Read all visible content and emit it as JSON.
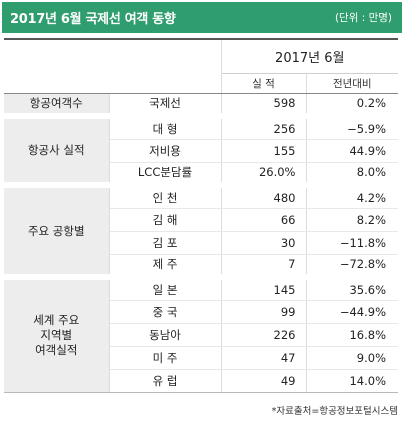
{
  "title": "2017년 6월 국제선 여객 동향",
  "unit": "(단위 : 만명)",
  "header": {
    "period": "2017년 6월",
    "col_result": "실 적",
    "col_change": "전년대비"
  },
  "sections": [
    {
      "group": "항공여객수",
      "rows": [
        {
          "label": "국제선",
          "value": "598",
          "change": "0.2%"
        }
      ]
    },
    {
      "group": "항공사 실적",
      "rows": [
        {
          "label": "대 형",
          "value": "256",
          "change": "−5.9%"
        },
        {
          "label": "저비용",
          "value": "155",
          "change": "44.9%"
        },
        {
          "label": "LCC분담률",
          "value": "26.0%",
          "change": "8.0%"
        }
      ]
    },
    {
      "group": "주요 공항별",
      "rows": [
        {
          "label": "인 천",
          "value": "480",
          "change": "4.2%"
        },
        {
          "label": "김 해",
          "value": "66",
          "change": "8.2%"
        },
        {
          "label": "김 포",
          "value": "30",
          "change": "−11.8%"
        },
        {
          "label": "제 주",
          "value": "7",
          "change": "−72.8%"
        }
      ]
    },
    {
      "group": "세계 주요\n지역별\n여객실적",
      "rows": [
        {
          "label": "일 본",
          "value": "145",
          "change": "35.6%"
        },
        {
          "label": "중 국",
          "value": "99",
          "change": "−44.9%"
        },
        {
          "label": "동남아",
          "value": "226",
          "change": "16.8%"
        },
        {
          "label": "미 주",
          "value": "47",
          "change": "9.0%"
        },
        {
          "label": "유 럽",
          "value": "49",
          "change": "14.0%"
        }
      ]
    }
  ],
  "source": "*자료출처=항공정보포털시스템",
  "colors": {
    "title_bar": "#2f9d6e",
    "group_bg": "#ededed"
  }
}
